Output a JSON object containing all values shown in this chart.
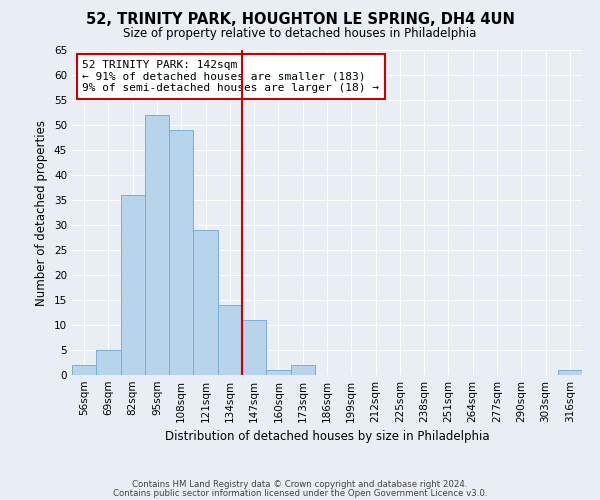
{
  "title": "52, TRINITY PARK, HOUGHTON LE SPRING, DH4 4UN",
  "subtitle": "Size of property relative to detached houses in Philadelphia",
  "xlabel": "Distribution of detached houses by size in Philadelphia",
  "ylabel": "Number of detached properties",
  "footer_line1": "Contains HM Land Registry data © Crown copyright and database right 2024.",
  "footer_line2": "Contains public sector information licensed under the Open Government Licence v3.0.",
  "bin_labels": [
    "56sqm",
    "69sqm",
    "82sqm",
    "95sqm",
    "108sqm",
    "121sqm",
    "134sqm",
    "147sqm",
    "160sqm",
    "173sqm",
    "186sqm",
    "199sqm",
    "212sqm",
    "225sqm",
    "238sqm",
    "251sqm",
    "264sqm",
    "277sqm",
    "290sqm",
    "303sqm",
    "316sqm"
  ],
  "bar_values": [
    2,
    5,
    36,
    52,
    49,
    29,
    14,
    11,
    1,
    2,
    0,
    0,
    0,
    0,
    0,
    0,
    0,
    0,
    0,
    0,
    1
  ],
  "bar_color": "#b8d4ea",
  "bar_edge_color": "#7aafd4",
  "vline_color": "#cc0000",
  "ylim": [
    0,
    65
  ],
  "yticks": [
    0,
    5,
    10,
    15,
    20,
    25,
    30,
    35,
    40,
    45,
    50,
    55,
    60,
    65
  ],
  "annotation_line1": "52 TRINITY PARK: 142sqm",
  "annotation_line2": "← 91% of detached houses are smaller (183)",
  "annotation_line3": "9% of semi-detached houses are larger (18) →",
  "annotation_box_color": "#ffffff",
  "annotation_border_color": "#cc0000",
  "bg_color": "#e8eef4"
}
